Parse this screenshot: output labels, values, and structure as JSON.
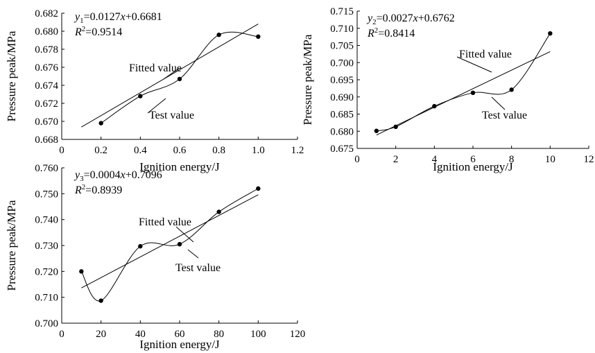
{
  "chart_data": [
    {
      "type": "line",
      "xlabel": "Ignition energy/J",
      "ylabel": "Pressure peak/MPa",
      "xlim": [
        0,
        1.2
      ],
      "ylim": [
        0.668,
        0.682
      ],
      "xticks": [
        "0",
        "0.2",
        "0.4",
        "0.6",
        "0.8",
        "1.0",
        "1.2"
      ],
      "yticks": [
        "0.668",
        "0.670",
        "0.672",
        "0.674",
        "0.676",
        "0.678",
        "0.680",
        "0.682"
      ],
      "equation": {
        "var": "y",
        "sub": "1",
        "rhs": "=0.0127",
        "x": "x",
        "tail": "+0.6681"
      },
      "r2": {
        "r": "R",
        "sup": "2",
        "val": "=0.9514"
      },
      "series": [
        {
          "name": "Test value",
          "x": [
            0.2,
            0.4,
            0.6,
            0.8,
            1.0
          ],
          "y": [
            0.6698,
            0.6728,
            0.6747,
            0.6796,
            0.6794
          ]
        },
        {
          "name": "Fitted value",
          "x": [
            0.1,
            1.0
          ],
          "y": [
            0.66937,
            0.6808
          ],
          "slope": 0.0127,
          "intercept": 0.6681
        }
      ],
      "annotations": {
        "fitted": "Fitted value",
        "test": "Test value"
      }
    },
    {
      "type": "line",
      "xlabel": "Ignition energy/J",
      "ylabel": "Pressure peak/MPa",
      "xlim": [
        0,
        12
      ],
      "ylim": [
        0.675,
        0.715
      ],
      "xticks": [
        "0",
        "2",
        "4",
        "6",
        "8",
        "10",
        "12"
      ],
      "yticks": [
        "0.675",
        "0.680",
        "0.685",
        "0.690",
        "0.695",
        "0.700",
        "0.705",
        "0.710",
        "0.715"
      ],
      "equation": {
        "var": "y",
        "sub": "2",
        "rhs": "=0.0027",
        "x": "x",
        "tail": "+0.6762"
      },
      "r2": {
        "r": "R",
        "sup": "2",
        "val": "=0.8414"
      },
      "series": [
        {
          "name": "Test value",
          "x": [
            1,
            2,
            4,
            6,
            8,
            10
          ],
          "y": [
            0.6801,
            0.6813,
            0.6873,
            0.6912,
            0.6921,
            0.7085
          ]
        },
        {
          "name": "Fitted value",
          "x": [
            1,
            10
          ],
          "y": [
            0.6789,
            0.7032
          ],
          "slope": 0.0027,
          "intercept": 0.6762
        }
      ],
      "annotations": {
        "fitted": "Fitted value",
        "test": "Test value"
      }
    },
    {
      "type": "line",
      "xlabel": "Ignition energy/J",
      "ylabel": "Pressure peak/MPa",
      "xlim": [
        0,
        120
      ],
      "ylim": [
        0.7,
        0.76
      ],
      "xticks": [
        "0",
        "20",
        "40",
        "60",
        "80",
        "100",
        "120"
      ],
      "yticks": [
        "0.700",
        "0.710",
        "0.720",
        "0.730",
        "0.740",
        "0.750",
        "0.760"
      ],
      "equation": {
        "var": "y",
        "sub": "3",
        "rhs": "=0.0004",
        "x": "x",
        "tail": "+0.7096"
      },
      "r2": {
        "r": "R",
        "sup": "2",
        "val": "=0.8939"
      },
      "series": [
        {
          "name": "Test value",
          "x": [
            10,
            20,
            40,
            60,
            80,
            100
          ],
          "y": [
            0.72,
            0.7087,
            0.7297,
            0.7305,
            0.743,
            0.752
          ]
        },
        {
          "name": "Fitted value",
          "x": [
            10,
            100
          ],
          "y": [
            0.7136,
            0.7496
          ],
          "slope": 0.0004,
          "intercept": 0.7096
        }
      ],
      "annotations": {
        "fitted": "Fitted value",
        "test": "Test value"
      }
    }
  ]
}
